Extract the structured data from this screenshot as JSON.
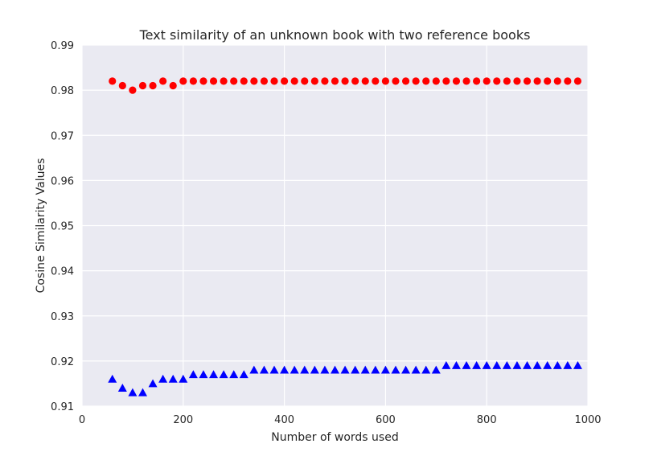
{
  "chart_data": {
    "type": "scatter",
    "title": "Text similarity of an unknown book with two reference books",
    "xlabel": "Number of words used",
    "ylabel": "Cosine Similarity Values",
    "xlim": [
      0,
      1000
    ],
    "ylim": [
      0.91,
      0.99
    ],
    "xticks": [
      "0",
      "200",
      "400",
      "600",
      "800",
      "1000"
    ],
    "yticks": [
      "0.91",
      "0.92",
      "0.93",
      "0.94",
      "0.95",
      "0.96",
      "0.97",
      "0.98",
      "0.99"
    ],
    "grid": true,
    "background": "#eaeaf2",
    "series": [
      {
        "marker": "circle",
        "color": "#ff0000",
        "x": [
          60,
          80,
          100,
          120,
          140,
          160,
          180,
          200,
          220,
          240,
          260,
          280,
          300,
          320,
          340,
          360,
          380,
          400,
          420,
          440,
          460,
          480,
          500,
          520,
          540,
          560,
          580,
          600,
          620,
          640,
          660,
          680,
          700,
          720,
          740,
          760,
          780,
          800,
          820,
          840,
          860,
          880,
          900,
          920,
          940,
          960,
          980
        ],
        "y": [
          0.982,
          0.981,
          0.98,
          0.981,
          0.981,
          0.982,
          0.981,
          0.982,
          0.982,
          0.982,
          0.982,
          0.982,
          0.982,
          0.982,
          0.982,
          0.982,
          0.982,
          0.982,
          0.982,
          0.982,
          0.982,
          0.982,
          0.982,
          0.982,
          0.982,
          0.982,
          0.982,
          0.982,
          0.982,
          0.982,
          0.982,
          0.982,
          0.982,
          0.982,
          0.982,
          0.982,
          0.982,
          0.982,
          0.982,
          0.982,
          0.982,
          0.982,
          0.982,
          0.982,
          0.982,
          0.982,
          0.982
        ]
      },
      {
        "marker": "triangle",
        "color": "#0000ff",
        "x": [
          60,
          80,
          100,
          120,
          140,
          160,
          180,
          200,
          220,
          240,
          260,
          280,
          300,
          320,
          340,
          360,
          380,
          400,
          420,
          440,
          460,
          480,
          500,
          520,
          540,
          560,
          580,
          600,
          620,
          640,
          660,
          680,
          700,
          720,
          740,
          760,
          780,
          800,
          820,
          840,
          860,
          880,
          900,
          920,
          940,
          960,
          980
        ],
        "y": [
          0.916,
          0.914,
          0.913,
          0.913,
          0.915,
          0.916,
          0.916,
          0.916,
          0.917,
          0.917,
          0.917,
          0.917,
          0.917,
          0.917,
          0.918,
          0.918,
          0.918,
          0.918,
          0.918,
          0.918,
          0.918,
          0.918,
          0.918,
          0.918,
          0.918,
          0.918,
          0.918,
          0.918,
          0.918,
          0.918,
          0.918,
          0.918,
          0.918,
          0.919,
          0.919,
          0.919,
          0.919,
          0.919,
          0.919,
          0.919,
          0.919,
          0.919,
          0.919,
          0.919,
          0.919,
          0.919,
          0.919
        ]
      }
    ]
  }
}
